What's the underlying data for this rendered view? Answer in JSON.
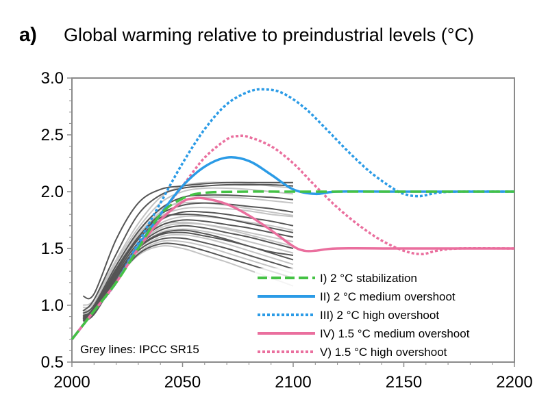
{
  "chart_data": {
    "type": "line",
    "panel_label": "a)",
    "title": "Global warming relative to preindustrial levels (°C)",
    "xlabel": "",
    "ylabel": "",
    "xlim": [
      2000,
      2200
    ],
    "ylim": [
      0.5,
      3.0
    ],
    "xticks": [
      2000,
      2050,
      2100,
      2150,
      2200
    ],
    "yticks": [
      0.5,
      1.0,
      1.5,
      2.0,
      2.5,
      3.0
    ],
    "ytick_labels": [
      "0.5",
      "1.0",
      "1.5",
      "2.0",
      "2.5",
      "3.0"
    ],
    "grid": false,
    "legend_position": "bottom-right",
    "note": "Grey lines: IPCC SR15",
    "colors": {
      "green": "#44c244",
      "blue": "#2b9be6",
      "pink": "#ea6f9e",
      "grey_dark": "#555555",
      "grey_light": "#c4c4c4"
    },
    "series": [
      {
        "name": "I) 2 °C stabilization",
        "color": "#44c244",
        "style": "dashed",
        "x": [
          2000,
          2010,
          2020,
          2030,
          2040,
          2050,
          2060,
          2080,
          2100,
          2150,
          2200
        ],
        "y": [
          0.7,
          0.95,
          1.2,
          1.5,
          1.8,
          1.94,
          1.99,
          2.0,
          2.0,
          2.0,
          2.0
        ]
      },
      {
        "name": "II) 2 °C medium overshoot",
        "color": "#2b9be6",
        "style": "solid",
        "x": [
          2000,
          2010,
          2020,
          2030,
          2040,
          2050,
          2060,
          2070,
          2080,
          2090,
          2100,
          2110,
          2120,
          2150,
          2200
        ],
        "y": [
          0.7,
          0.95,
          1.2,
          1.52,
          1.8,
          2.05,
          2.22,
          2.3,
          2.27,
          2.15,
          2.02,
          1.98,
          2.0,
          2.0,
          2.0
        ]
      },
      {
        "name": "III) 2 °C high overshoot",
        "color": "#2b9be6",
        "style": "dotted",
        "x": [
          2000,
          2010,
          2020,
          2030,
          2040,
          2050,
          2060,
          2070,
          2080,
          2087,
          2095,
          2105,
          2115,
          2125,
          2135,
          2145,
          2150,
          2157,
          2165,
          2175,
          2200
        ],
        "y": [
          0.7,
          0.95,
          1.2,
          1.55,
          1.9,
          2.25,
          2.55,
          2.77,
          2.88,
          2.9,
          2.87,
          2.74,
          2.55,
          2.35,
          2.17,
          2.03,
          1.98,
          1.96,
          1.99,
          2.0,
          2.0
        ]
      },
      {
        "name": "IV) 1.5 °C medium overshoot",
        "color": "#ea6f9e",
        "style": "solid",
        "x": [
          2000,
          2010,
          2020,
          2030,
          2040,
          2050,
          2055,
          2060,
          2070,
          2080,
          2090,
          2100,
          2105,
          2110,
          2120,
          2150,
          2200
        ],
        "y": [
          0.7,
          0.95,
          1.2,
          1.5,
          1.75,
          1.91,
          1.94,
          1.94,
          1.89,
          1.79,
          1.66,
          1.52,
          1.48,
          1.48,
          1.5,
          1.5,
          1.5
        ]
      },
      {
        "name": "V) 1.5 °C high overshoot",
        "color": "#ea6f9e",
        "style": "dotted",
        "x": [
          2000,
          2010,
          2020,
          2030,
          2040,
          2050,
          2060,
          2070,
          2075,
          2080,
          2090,
          2100,
          2110,
          2120,
          2130,
          2140,
          2150,
          2158,
          2165,
          2175,
          2200
        ],
        "y": [
          0.7,
          0.95,
          1.2,
          1.52,
          1.8,
          2.05,
          2.3,
          2.46,
          2.49,
          2.48,
          2.4,
          2.25,
          2.05,
          1.86,
          1.7,
          1.57,
          1.48,
          1.45,
          1.48,
          1.5,
          1.5
        ]
      }
    ],
    "grey_lines": {
      "x": [
        2005,
        2010,
        2020,
        2030,
        2040,
        2050,
        2060,
        2070,
        2080,
        2090,
        2100
      ],
      "ensemble": [
        {
          "tone": "dark",
          "y": [
            1.08,
            1.1,
            1.58,
            1.9,
            2.02,
            2.05,
            2.07,
            2.08,
            2.08,
            2.08,
            2.08
          ]
        },
        {
          "tone": "dark",
          "y": [
            0.95,
            1.05,
            1.45,
            1.8,
            1.97,
            2.03,
            2.05,
            2.06,
            2.06,
            2.06,
            2.05
          ]
        },
        {
          "tone": "light",
          "y": [
            1.0,
            1.05,
            1.4,
            1.72,
            1.95,
            2.05,
            2.08,
            2.08,
            2.07,
            2.05,
            2.03
          ]
        },
        {
          "tone": "light",
          "y": [
            0.98,
            1.02,
            1.38,
            1.68,
            1.9,
            2.0,
            2.03,
            2.03,
            2.02,
            2.0,
            1.98
          ]
        },
        {
          "tone": "dark",
          "y": [
            0.93,
            1.0,
            1.35,
            1.65,
            1.85,
            1.95,
            1.97,
            1.97,
            1.96,
            1.95,
            1.93
          ]
        },
        {
          "tone": "light",
          "y": [
            0.95,
            1.0,
            1.35,
            1.62,
            1.82,
            1.92,
            1.95,
            1.95,
            1.94,
            1.92,
            1.9
          ]
        },
        {
          "tone": "dark",
          "y": [
            0.9,
            0.98,
            1.32,
            1.6,
            1.8,
            1.88,
            1.9,
            1.89,
            1.87,
            1.85,
            1.82
          ]
        },
        {
          "tone": "light",
          "y": [
            0.92,
            0.98,
            1.3,
            1.58,
            1.78,
            1.85,
            1.86,
            1.85,
            1.83,
            1.8,
            1.78
          ]
        },
        {
          "tone": "dark",
          "y": [
            0.9,
            0.96,
            1.3,
            1.58,
            1.75,
            1.82,
            1.82,
            1.8,
            1.77,
            1.74,
            1.7
          ]
        },
        {
          "tone": "light",
          "y": [
            0.91,
            0.97,
            1.28,
            1.55,
            1.72,
            1.78,
            1.78,
            1.76,
            1.73,
            1.7,
            1.66
          ]
        },
        {
          "tone": "dark",
          "y": [
            0.89,
            0.95,
            1.28,
            1.55,
            1.7,
            1.75,
            1.74,
            1.71,
            1.68,
            1.64,
            1.6
          ]
        },
        {
          "tone": "light",
          "y": [
            0.9,
            0.96,
            1.27,
            1.53,
            1.68,
            1.72,
            1.71,
            1.68,
            1.64,
            1.6,
            1.56
          ]
        },
        {
          "tone": "dark",
          "y": [
            0.88,
            0.94,
            1.26,
            1.52,
            1.66,
            1.7,
            1.68,
            1.64,
            1.6,
            1.55,
            1.5
          ]
        },
        {
          "tone": "light",
          "y": [
            0.89,
            0.95,
            1.25,
            1.5,
            1.64,
            1.67,
            1.65,
            1.61,
            1.56,
            1.51,
            1.46
          ]
        },
        {
          "tone": "dark",
          "y": [
            0.88,
            0.94,
            1.25,
            1.5,
            1.62,
            1.64,
            1.61,
            1.57,
            1.52,
            1.46,
            1.4
          ]
        },
        {
          "tone": "light",
          "y": [
            0.88,
            0.94,
            1.24,
            1.48,
            1.6,
            1.62,
            1.59,
            1.54,
            1.48,
            1.42,
            1.36
          ]
        },
        {
          "tone": "dark",
          "y": [
            0.87,
            0.93,
            1.24,
            1.48,
            1.58,
            1.59,
            1.55,
            1.5,
            1.44,
            1.38,
            1.32
          ]
        },
        {
          "tone": "light",
          "y": [
            0.87,
            0.93,
            1.23,
            1.46,
            1.56,
            1.56,
            1.52,
            1.46,
            1.4,
            1.34,
            1.28
          ]
        },
        {
          "tone": "dark",
          "y": [
            0.86,
            0.92,
            1.22,
            1.45,
            1.54,
            1.53,
            1.48,
            1.42,
            1.36,
            1.3,
            1.24
          ]
        },
        {
          "tone": "light",
          "y": [
            0.86,
            0.92,
            1.22,
            1.44,
            1.52,
            1.5,
            1.44,
            1.38,
            1.31,
            1.24,
            1.17
          ]
        },
        {
          "tone": "light",
          "y": [
            0.92,
            0.99,
            1.33,
            1.64,
            1.84,
            1.9,
            1.9,
            1.88,
            1.85,
            1.82,
            1.79
          ]
        },
        {
          "tone": "dark",
          "y": [
            0.91,
            0.97,
            1.31,
            1.6,
            1.77,
            1.8,
            1.79,
            1.76,
            1.72,
            1.68,
            1.64
          ]
        },
        {
          "tone": "light",
          "y": [
            0.89,
            0.95,
            1.27,
            1.54,
            1.7,
            1.73,
            1.71,
            1.67,
            1.62,
            1.57,
            1.52
          ]
        },
        {
          "tone": "dark",
          "y": [
            0.88,
            0.94,
            1.26,
            1.51,
            1.63,
            1.66,
            1.63,
            1.58,
            1.52,
            1.47,
            1.44
          ]
        }
      ]
    }
  }
}
